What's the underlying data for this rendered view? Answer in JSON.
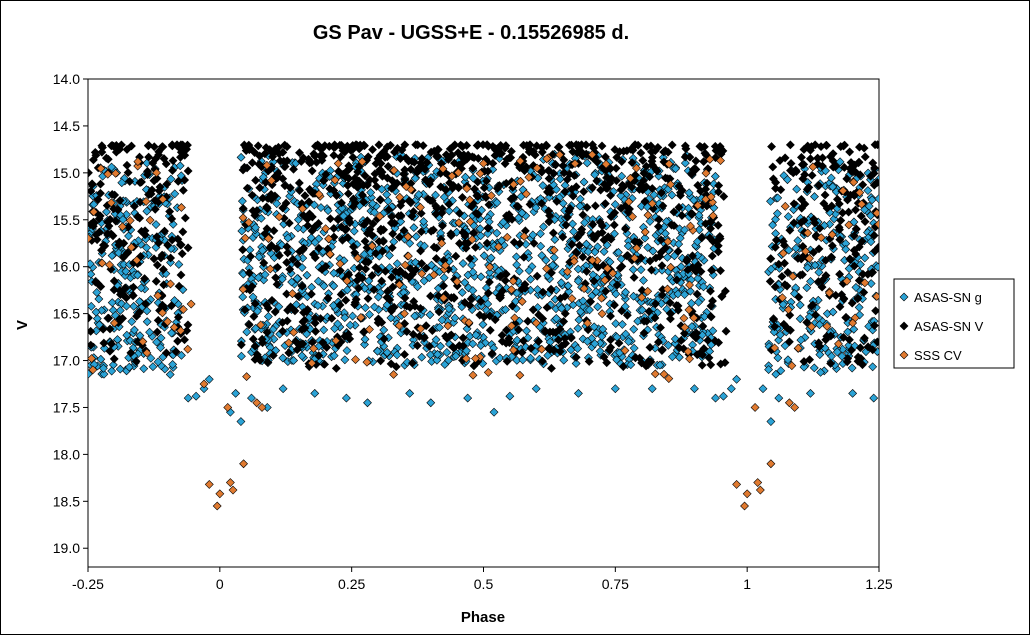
{
  "chart_data": {
    "type": "scatter",
    "title": "GS Pav - UGSS+E - 0.15526985 d.",
    "xlabel": "Phase",
    "ylabel": "V",
    "xlim": [
      -0.25,
      1.25
    ],
    "ylim": [
      19.2,
      14.0
    ],
    "y_inverted": true,
    "grid": false,
    "legend_position": "right",
    "x_tick_labels": [
      "-0.25",
      "0",
      "0.25",
      "0.5",
      "0.75",
      "1",
      "1.25"
    ],
    "x_tick_values": [
      -0.25,
      0,
      0.25,
      0.5,
      0.75,
      1,
      1.25
    ],
    "y_tick_labels": [
      "14.0",
      "14.5",
      "15.0",
      "15.5",
      "16.0",
      "16.5",
      "17.0",
      "17.5",
      "18.0",
      "18.5",
      "19.0"
    ],
    "y_tick_values": [
      14.0,
      14.5,
      15.0,
      15.5,
      16.0,
      16.5,
      17.0,
      17.5,
      18.0,
      18.5,
      19.0
    ],
    "series": [
      {
        "name": "ASAS-SN g",
        "color": "#2ba3d6",
        "marker": "diamond",
        "bands": [
          {
            "x": [
              -0.25,
              -0.07
            ],
            "y": [
              14.85,
              17.15
            ],
            "weight": 1.0
          },
          {
            "x": [
              0.04,
              0.94
            ],
            "y": [
              14.8,
              17.05
            ],
            "weight": 5.0
          },
          {
            "x": [
              1.04,
              1.25
            ],
            "y": [
              14.85,
              17.15
            ],
            "weight": 1.0
          }
        ],
        "points": [
          [
            -0.06,
            17.4
          ],
          [
            -0.045,
            17.38
          ],
          [
            -0.03,
            17.3
          ],
          [
            -0.02,
            17.2
          ],
          [
            0.02,
            17.55
          ],
          [
            0.03,
            17.35
          ],
          [
            0.04,
            17.65
          ],
          [
            0.06,
            17.4
          ],
          [
            0.09,
            17.5
          ],
          [
            0.12,
            17.3
          ],
          [
            0.18,
            17.35
          ],
          [
            0.24,
            17.4
          ],
          [
            0.28,
            17.45
          ],
          [
            0.36,
            17.35
          ],
          [
            0.4,
            17.45
          ],
          [
            0.47,
            17.4
          ],
          [
            0.52,
            17.55
          ],
          [
            0.55,
            17.38
          ],
          [
            0.6,
            17.3
          ],
          [
            0.68,
            17.35
          ],
          [
            0.75,
            17.3
          ],
          [
            0.82,
            17.3
          ],
          [
            0.9,
            17.3
          ],
          [
            0.94,
            17.4
          ],
          [
            0.955,
            17.38
          ],
          [
            0.97,
            17.3
          ],
          [
            0.98,
            17.2
          ],
          [
            1.03,
            17.3
          ],
          [
            1.045,
            17.65
          ],
          [
            1.06,
            17.4
          ],
          [
            1.12,
            17.35
          ],
          [
            1.2,
            17.35
          ],
          [
            1.24,
            17.4
          ]
        ]
      },
      {
        "name": "ASAS-SN V",
        "color": "#000000",
        "marker": "diamond",
        "bands": [
          {
            "x": [
              -0.25,
              -0.06
            ],
            "y": [
              14.7,
              17.05
            ],
            "weight": 0.8
          },
          {
            "x": [
              0.04,
              0.96
            ],
            "y": [
              14.7,
              17.1
            ],
            "weight": 4.0
          },
          {
            "x": [
              1.04,
              1.25
            ],
            "y": [
              14.7,
              17.05
            ],
            "weight": 0.8
          }
        ],
        "points": [
          [
            -0.19,
            14.75
          ],
          [
            0.81,
            14.72
          ],
          [
            0.85,
            14.78
          ],
          [
            0.3,
            14.85
          ],
          [
            0.42,
            14.9
          ],
          [
            1.12,
            14.85
          ],
          [
            0.68,
            14.9
          ],
          [
            0.18,
            14.82
          ]
        ]
      },
      {
        "name": "SSS CV",
        "color": "#e07a30",
        "marker": "diamond",
        "bands": [
          {
            "x": [
              -0.25,
              -0.05
            ],
            "y": [
              14.8,
              17.1
            ],
            "weight": 0.12
          },
          {
            "x": [
              0.04,
              0.95
            ],
            "y": [
              14.8,
              17.2
            ],
            "weight": 0.55
          },
          {
            "x": [
              1.05,
              1.25
            ],
            "y": [
              14.8,
              17.1
            ],
            "weight": 0.12
          }
        ],
        "points": [
          [
            -0.02,
            18.32
          ],
          [
            -0.005,
            18.55
          ],
          [
            0.0,
            18.42
          ],
          [
            0.02,
            18.3
          ],
          [
            0.025,
            18.38
          ],
          [
            0.045,
            18.1
          ],
          [
            0.015,
            17.5
          ],
          [
            -0.03,
            17.25
          ],
          [
            0.07,
            17.45
          ],
          [
            0.08,
            17.5
          ],
          [
            0.98,
            18.32
          ],
          [
            0.995,
            18.55
          ],
          [
            1.0,
            18.42
          ],
          [
            1.02,
            18.3
          ],
          [
            1.025,
            18.38
          ],
          [
            1.045,
            18.1
          ],
          [
            1.015,
            17.5
          ],
          [
            1.08,
            17.45
          ],
          [
            1.09,
            17.5
          ],
          [
            0.27,
            14.88
          ],
          [
            0.5,
            14.9
          ],
          [
            0.62,
            14.85
          ],
          [
            0.79,
            14.95
          ],
          [
            -0.12,
            15.0
          ],
          [
            0.35,
            16.5
          ],
          [
            0.6,
            16.6
          ],
          [
            0.88,
            16.55
          ],
          [
            1.2,
            16.6
          ],
          [
            -0.2,
            16.6
          ],
          [
            0.14,
            16.7
          ]
        ]
      }
    ]
  }
}
